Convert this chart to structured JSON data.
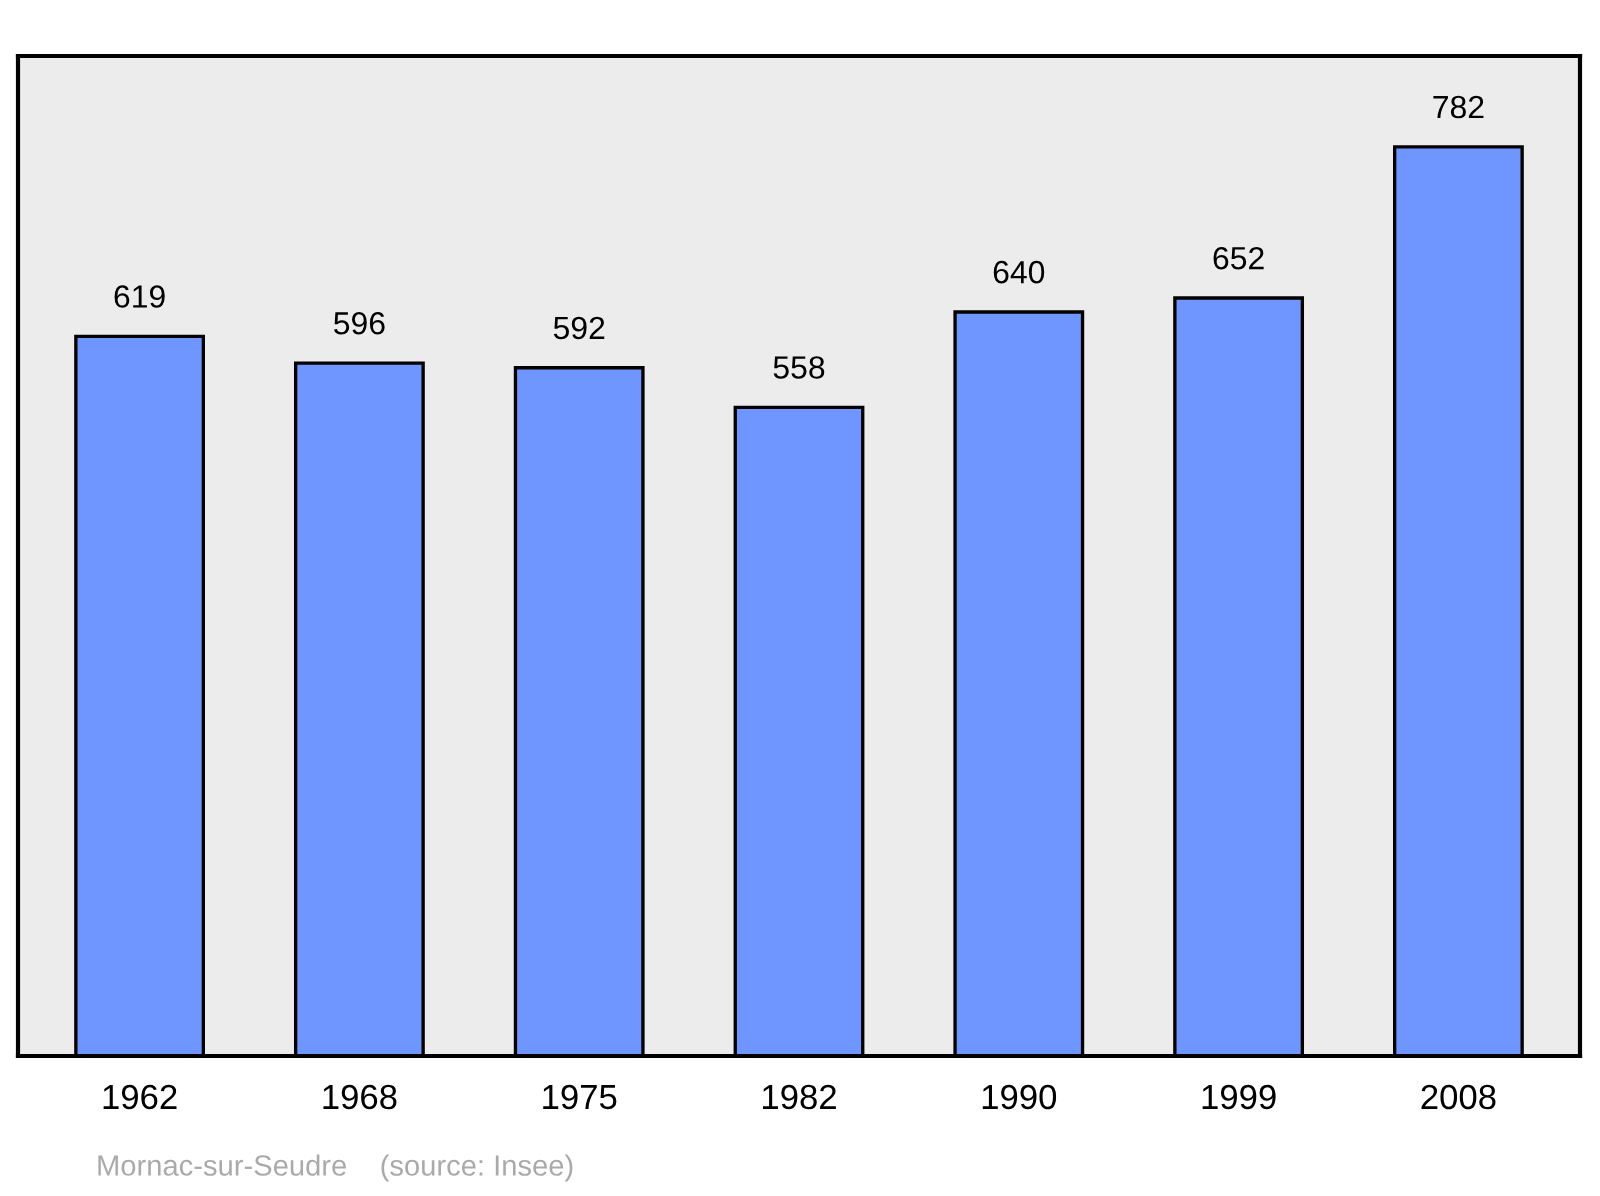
{
  "chart_data": {
    "type": "bar",
    "categories": [
      "1962",
      "1968",
      "1975",
      "1982",
      "1990",
      "1999",
      "2008"
    ],
    "values": [
      619,
      596,
      592,
      558,
      640,
      652,
      782
    ],
    "color": "#6f96ff",
    "data_labels": true,
    "grid": false,
    "legend": false,
    "tick_labels": "x",
    "annotations": [
      "Mornac-sur-Seudre    (source: Insee)"
    ]
  }
}
